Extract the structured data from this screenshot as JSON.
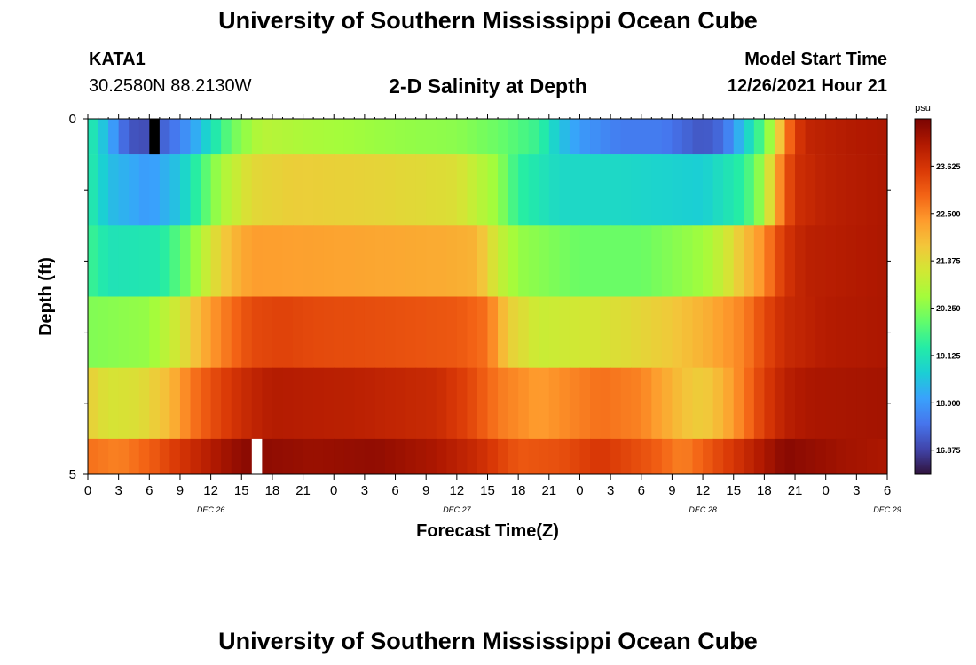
{
  "header": {
    "title": "University of Southern Mississippi Ocean Cube",
    "station_name": "KATA1",
    "station_coords": "30.2580N  88.2130W",
    "plot_title": "2-D Salinity at Depth",
    "model_start_label": "Model Start Time",
    "model_start_value": "12/26/2021 Hour 21"
  },
  "footer": {
    "title": "University of Southern Mississippi Ocean Cube"
  },
  "chart_data": {
    "type": "heatmap",
    "title": "2-D Salinity at Depth",
    "xlabel": "Forecast Time(Z)",
    "ylabel": "Depth (ft)",
    "x_tick_labels": [
      "0",
      "3",
      "6",
      "9",
      "12",
      "15",
      "18",
      "21",
      "0",
      "3",
      "6",
      "9",
      "12",
      "15",
      "18",
      "21",
      "0",
      "3",
      "6",
      "9",
      "12",
      "15",
      "18",
      "21",
      "0",
      "3",
      "6"
    ],
    "date_labels": [
      {
        "label": "DEC 26",
        "hour": 12
      },
      {
        "label": "DEC 27",
        "hour": 36
      },
      {
        "label": "DEC 28",
        "hour": 60
      },
      {
        "label": "DEC 29",
        "hour": 78
      }
    ],
    "xlim": [
      0,
      78
    ],
    "ylim": [
      0,
      5
    ],
    "y_tick_labels": [
      {
        "label": "0",
        "depth": 0
      },
      {
        "label": "5",
        "depth": 5
      }
    ],
    "y_minor_ticks": [
      1,
      2,
      3,
      4
    ],
    "depth_rows": 5,
    "colorbar": {
      "unit": "psu",
      "min": 16.3,
      "max": 24.75,
      "ticks": [
        "16.875",
        "18.000",
        "19.125",
        "20.250",
        "21.375",
        "22.500",
        "23.625"
      ],
      "palette": [
        "#30123b",
        "#4145ab",
        "#4675ed",
        "#39a2fc",
        "#1bcfd4",
        "#24eca6",
        "#61fc6c",
        "#a4fc3b",
        "#d1e834",
        "#f3c63a",
        "#fe9b2d",
        "#f36315",
        "#d93806",
        "#b11901",
        "#7a0402"
      ]
    },
    "rows": [
      {
        "depth_top": 0.0,
        "depth_bottom": 0.5,
        "keys": [
          [
            0,
            19.4
          ],
          [
            2,
            18.3
          ],
          [
            4,
            17.1
          ],
          [
            6,
            17.0
          ],
          [
            8,
            17.4
          ],
          [
            10,
            18.0
          ],
          [
            12,
            19.0
          ],
          [
            14,
            20.0
          ],
          [
            17,
            20.8
          ],
          [
            22,
            20.6
          ],
          [
            30,
            20.4
          ],
          [
            36,
            20.3
          ],
          [
            40,
            20.0
          ],
          [
            44,
            19.5
          ],
          [
            46,
            18.6
          ],
          [
            48,
            18.0
          ],
          [
            52,
            17.6
          ],
          [
            56,
            17.6
          ],
          [
            60,
            17.1
          ],
          [
            62,
            17.4
          ],
          [
            64,
            18.6
          ],
          [
            66,
            19.9
          ],
          [
            67,
            21.0
          ],
          [
            68,
            22.5
          ],
          [
            69,
            23.4
          ],
          [
            70,
            23.9
          ],
          [
            74,
            24.1
          ],
          [
            78,
            24.2
          ]
        ]
      },
      {
        "depth_top": 0.5,
        "depth_bottom": 1.5,
        "keys": [
          [
            0,
            19.4
          ],
          [
            2,
            18.5
          ],
          [
            6,
            18.0
          ],
          [
            9,
            18.6
          ],
          [
            11,
            19.6
          ],
          [
            13,
            20.6
          ],
          [
            16,
            21.4
          ],
          [
            20,
            21.6
          ],
          [
            28,
            21.5
          ],
          [
            36,
            21.3
          ],
          [
            40,
            20.4
          ],
          [
            42,
            19.4
          ],
          [
            46,
            18.9
          ],
          [
            52,
            18.9
          ],
          [
            60,
            18.7
          ],
          [
            64,
            19.4
          ],
          [
            66,
            20.6
          ],
          [
            67,
            22.0
          ],
          [
            68,
            23.0
          ],
          [
            69,
            23.7
          ],
          [
            72,
            24.0
          ],
          [
            78,
            24.2
          ]
        ]
      },
      {
        "depth_top": 1.5,
        "depth_bottom": 2.5,
        "keys": [
          [
            0,
            19.6
          ],
          [
            2,
            19.1
          ],
          [
            7,
            19.2
          ],
          [
            10,
            20.2
          ],
          [
            12,
            21.2
          ],
          [
            14,
            21.9
          ],
          [
            16,
            22.3
          ],
          [
            26,
            22.2
          ],
          [
            35,
            22.1
          ],
          [
            38,
            22.0
          ],
          [
            40,
            21.0
          ],
          [
            42,
            20.4
          ],
          [
            48,
            20.0
          ],
          [
            54,
            20.0
          ],
          [
            60,
            20.5
          ],
          [
            62,
            21.0
          ],
          [
            64,
            21.8
          ],
          [
            66,
            22.5
          ],
          [
            67,
            23.1
          ],
          [
            68,
            23.6
          ],
          [
            70,
            24.0
          ],
          [
            78,
            24.2
          ]
        ]
      },
      {
        "depth_top": 2.5,
        "depth_bottom": 3.5,
        "keys": [
          [
            0,
            20.2
          ],
          [
            6,
            20.4
          ],
          [
            9,
            21.2
          ],
          [
            11,
            22.0
          ],
          [
            13,
            22.6
          ],
          [
            16,
            23.3
          ],
          [
            19,
            23.4
          ],
          [
            22,
            23.3
          ],
          [
            30,
            23.2
          ],
          [
            36,
            23.1
          ],
          [
            39,
            22.8
          ],
          [
            41,
            21.6
          ],
          [
            44,
            21.0
          ],
          [
            50,
            21.2
          ],
          [
            56,
            21.6
          ],
          [
            60,
            22.0
          ],
          [
            64,
            22.6
          ],
          [
            66,
            23.3
          ],
          [
            68,
            23.8
          ],
          [
            72,
            24.1
          ],
          [
            78,
            24.2
          ]
        ]
      },
      {
        "depth_top": 3.5,
        "depth_bottom": 4.5,
        "keys": [
          [
            0,
            21.6
          ],
          [
            2,
            21.2
          ],
          [
            5,
            21.3
          ],
          [
            8,
            21.9
          ],
          [
            10,
            22.7
          ],
          [
            12,
            23.2
          ],
          [
            14,
            23.6
          ],
          [
            16,
            23.9
          ],
          [
            18,
            24.1
          ],
          [
            26,
            24.0
          ],
          [
            34,
            23.8
          ],
          [
            37,
            23.4
          ],
          [
            40,
            22.7
          ],
          [
            44,
            22.3
          ],
          [
            50,
            22.8
          ],
          [
            54,
            22.6
          ],
          [
            58,
            21.8
          ],
          [
            60,
            21.6
          ],
          [
            62,
            22.0
          ],
          [
            64,
            22.7
          ],
          [
            66,
            23.5
          ],
          [
            68,
            24.0
          ],
          [
            70,
            24.2
          ],
          [
            78,
            24.3
          ]
        ]
      },
      {
        "depth_top": 4.5,
        "depth_bottom": 5.0,
        "keys": [
          [
            0,
            22.8
          ],
          [
            3,
            22.6
          ],
          [
            6,
            23.0
          ],
          [
            9,
            23.6
          ],
          [
            12,
            24.1
          ],
          [
            14,
            24.4
          ],
          [
            16,
            24.6
          ],
          [
            18,
            24.5
          ],
          [
            22,
            24.4
          ],
          [
            28,
            24.5
          ],
          [
            34,
            24.2
          ],
          [
            38,
            23.8
          ],
          [
            42,
            23.1
          ],
          [
            46,
            23.2
          ],
          [
            50,
            23.6
          ],
          [
            55,
            23.1
          ],
          [
            58,
            22.6
          ],
          [
            60,
            23.0
          ],
          [
            64,
            23.8
          ],
          [
            66,
            24.2
          ],
          [
            68,
            24.6
          ],
          [
            70,
            24.5
          ],
          [
            74,
            24.3
          ],
          [
            78,
            24.2
          ]
        ]
      }
    ],
    "missing_cells": [
      {
        "hour": 6,
        "row": 0,
        "color": "#000000"
      },
      {
        "hour": 16,
        "row": 5,
        "color": "#ffffff"
      }
    ]
  }
}
